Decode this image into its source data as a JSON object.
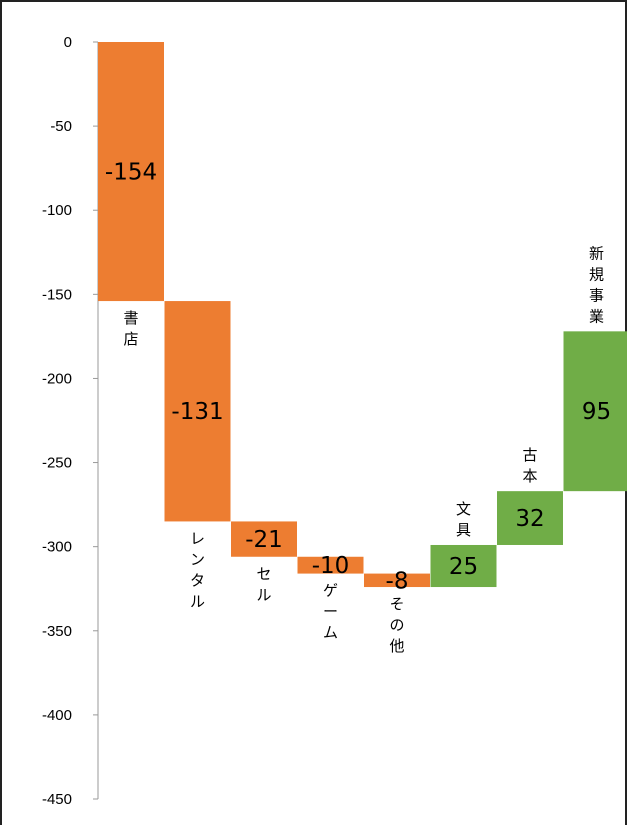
{
  "chart_data": {
    "type": "waterfall",
    "ylim": [
      -450,
      0
    ],
    "yticks": [
      0,
      -50,
      -100,
      -150,
      -200,
      -250,
      -300,
      -350,
      -400,
      -450
    ],
    "grid": false,
    "colors": {
      "decrease": "#ED7D31",
      "increase": "#70AD47",
      "axis": "#999999"
    },
    "start": 0,
    "bars": [
      {
        "category": "書店",
        "value": -154,
        "label": "-154",
        "kind": "decrease"
      },
      {
        "category": "レンタル",
        "value": -131,
        "label": "-131",
        "kind": "decrease"
      },
      {
        "category": "セル",
        "value": -21,
        "label": "-21",
        "kind": "decrease"
      },
      {
        "category": "ゲーム",
        "value": -10,
        "label": "-10",
        "kind": "decrease"
      },
      {
        "category": "その他",
        "value": -8,
        "label": "-8",
        "kind": "decrease"
      },
      {
        "category": "文具",
        "value": 25,
        "label": "25",
        "kind": "increase"
      },
      {
        "category": "古本",
        "value": 32,
        "label": "32",
        "kind": "increase"
      },
      {
        "category": "新規事業",
        "value": 95,
        "label": "95",
        "kind": "increase"
      }
    ]
  }
}
